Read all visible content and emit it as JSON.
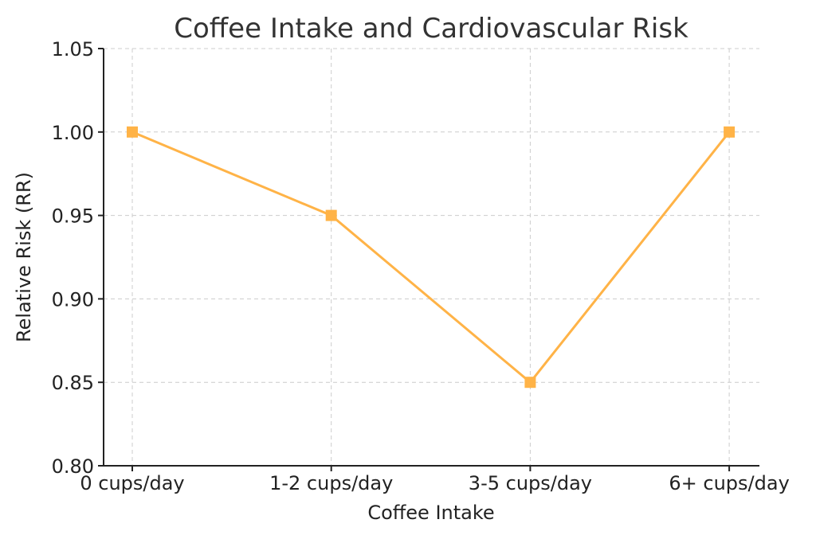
{
  "chart_data": {
    "type": "line",
    "title": "Coffee Intake and Cardiovascular Risk",
    "xlabel": "Coffee Intake",
    "ylabel": "Relative Risk (RR)",
    "categories": [
      "0 cups/day",
      "1-2 cups/day",
      "3-5 cups/day",
      "6+ cups/day"
    ],
    "series": [
      {
        "name": "Relative Risk",
        "values": [
          1.0,
          0.95,
          0.85,
          1.0
        ],
        "color": "#FFB347",
        "marker": "square"
      }
    ],
    "ylim": [
      0.8,
      1.05
    ],
    "yticks": [
      "0.80",
      "0.85",
      "0.90",
      "0.95",
      "1.00",
      "1.05"
    ],
    "grid": true
  }
}
